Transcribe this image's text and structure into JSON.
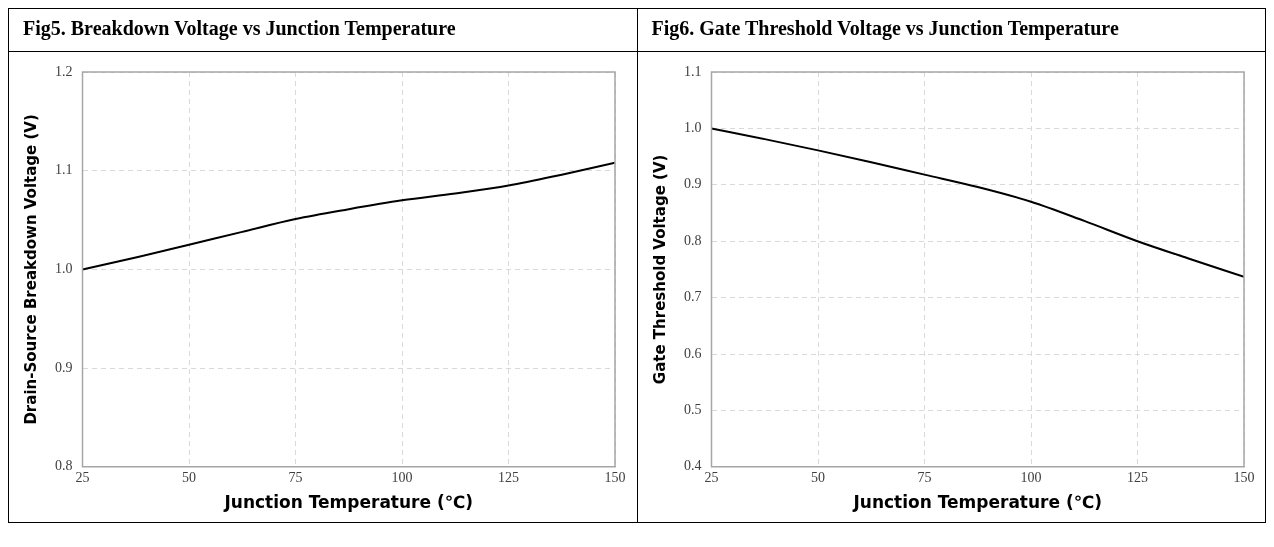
{
  "chart_data": [
    {
      "type": "line",
      "title": "Fig5. Breakdown Voltage vs Junction Temperature",
      "xlabel": "Junction Temperature (℃)",
      "ylabel": "Drain-Source Breakdown Voltage (V)",
      "x": [
        25,
        37.5,
        50,
        62.5,
        75,
        87.5,
        100,
        112.5,
        125,
        137.5,
        150
      ],
      "series": [
        {
          "color": "#000000",
          "values": [
            1.0,
            1.012,
            1.025,
            1.038,
            1.051,
            1.061,
            1.07,
            1.077,
            1.085,
            1.096,
            1.108
          ]
        }
      ],
      "xlim": [
        25,
        150
      ],
      "xticks": [
        25,
        50,
        75,
        100,
        125,
        150
      ],
      "ylim": [
        0.8,
        1.2
      ],
      "yticks": [
        {
          "value": 0.8,
          "label": "0.8"
        },
        {
          "value": 0.9,
          "label": "0.9"
        },
        {
          "value": 1.0,
          "label": "1.0"
        },
        {
          "value": 1.1,
          "label": "1.1"
        },
        {
          "value": 1.2,
          "label": "1.2"
        }
      ],
      "grid": true,
      "legend": false,
      "marker": "none",
      "line_style": "solid"
    },
    {
      "type": "line",
      "title": "Fig6. Gate Threshold Voltage vs Junction Temperature",
      "xlabel": "Junction Temperature (℃)",
      "ylabel": "Gate Threshold Voltage (V)",
      "x": [
        25,
        37.5,
        50,
        62.5,
        75,
        87.5,
        100,
        112.5,
        125,
        137.5,
        150
      ],
      "series": [
        {
          "color": "#000000",
          "values": [
            1.0,
            0.981,
            0.961,
            0.94,
            0.918,
            0.896,
            0.87,
            0.836,
            0.8,
            0.768,
            0.737
          ]
        }
      ],
      "xlim": [
        25,
        150
      ],
      "xticks": [
        25,
        50,
        75,
        100,
        125,
        150
      ],
      "ylim": [
        0.4,
        1.1
      ],
      "yticks": [
        {
          "value": 0.4,
          "label": "0.4"
        },
        {
          "value": 0.5,
          "label": "0.5"
        },
        {
          "value": 0.6,
          "label": "0.6"
        },
        {
          "value": 0.7,
          "label": "0.7"
        },
        {
          "value": 0.8,
          "label": "0.8"
        },
        {
          "value": 0.9,
          "label": "0.9"
        },
        {
          "value": 1.0,
          "label": "1.0"
        },
        {
          "value": 1.1,
          "label": "1.1"
        }
      ],
      "grid": true,
      "legend": false,
      "marker": "none",
      "line_style": "solid"
    }
  ]
}
